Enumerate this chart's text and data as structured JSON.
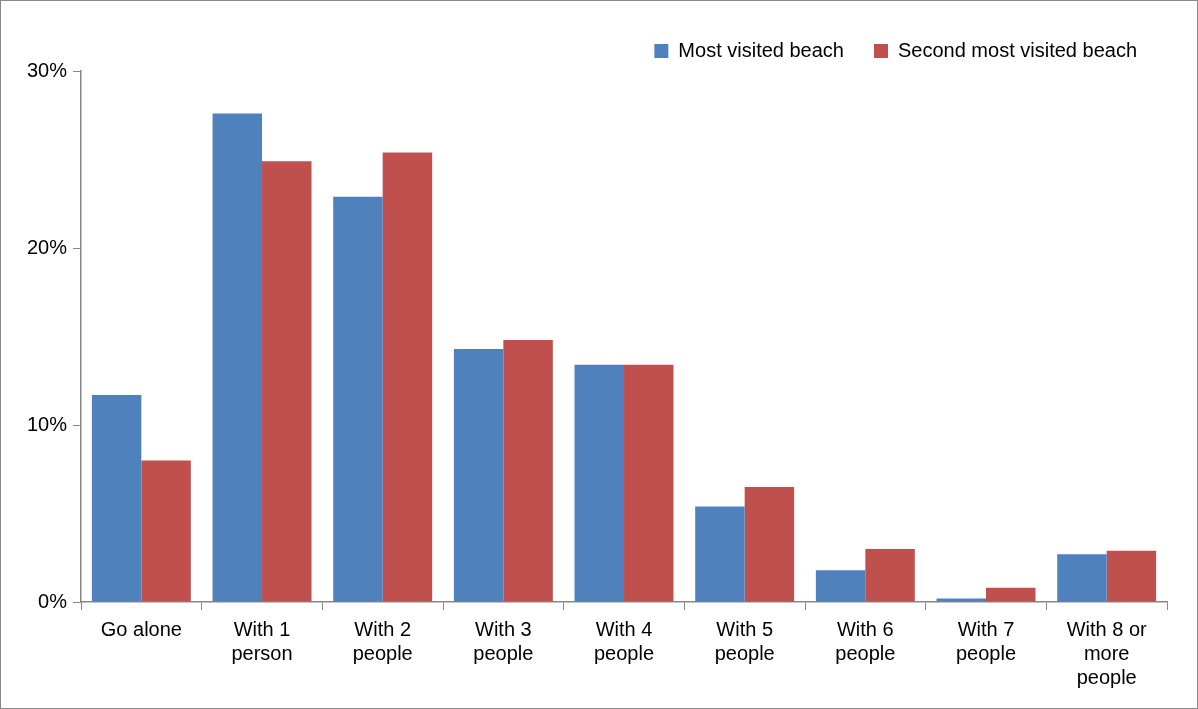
{
  "chart_data": {
    "type": "bar",
    "categories": [
      "Go alone",
      "With 1 person",
      "With 2 people",
      "With 3 people",
      "With 4 people",
      "With 5 people",
      "With 6 people",
      "With 7 people",
      "With 8 or more people"
    ],
    "series": [
      {
        "name": "Most visited beach",
        "color": "#4f81bd",
        "values": [
          11.7,
          27.6,
          22.9,
          14.3,
          13.4,
          5.4,
          1.8,
          0.2,
          2.7
        ]
      },
      {
        "name": "Second most visited beach",
        "color": "#c0504d",
        "values": [
          8.0,
          24.9,
          25.4,
          14.8,
          13.4,
          6.5,
          3.0,
          0.8,
          2.9
        ]
      }
    ],
    "ylim": [
      0,
      30
    ],
    "yticks": [
      {
        "value": 0,
        "label": "0%"
      },
      {
        "value": 10,
        "label": "10%"
      },
      {
        "value": 20,
        "label": "20%"
      },
      {
        "value": 30,
        "label": "30%"
      }
    ],
    "grid": false,
    "legend": "top right"
  }
}
